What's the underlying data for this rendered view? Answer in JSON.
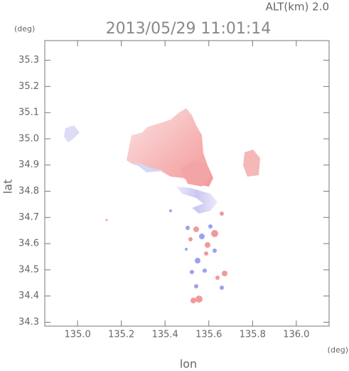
{
  "chart_data": {
    "type": "field",
    "title": "2013/05/29 11:01:14",
    "subtitle": "ALT(km) 2.0",
    "x_label": "lon",
    "y_label": "lat",
    "x_unit": "(deg)",
    "y_unit": "(deg)",
    "xlim": [
      134.85,
      136.15
    ],
    "ylim": [
      34.285,
      35.375
    ],
    "xticks": [
      {
        "value": 135.0,
        "label": "135.0"
      },
      {
        "value": 135.2,
        "label": "135.2"
      },
      {
        "value": 135.4,
        "label": "135.4"
      },
      {
        "value": 135.6,
        "label": "135.6"
      },
      {
        "value": 135.8,
        "label": "135.8"
      },
      {
        "value": 136.0,
        "label": "136.0"
      }
    ],
    "yticks": [
      34.3,
      34.4,
      34.5,
      34.6,
      34.7,
      34.8,
      34.9,
      {
        "value": 35.0,
        "label": "35.0"
      },
      35.1,
      35.2,
      35.3
    ]
  }
}
